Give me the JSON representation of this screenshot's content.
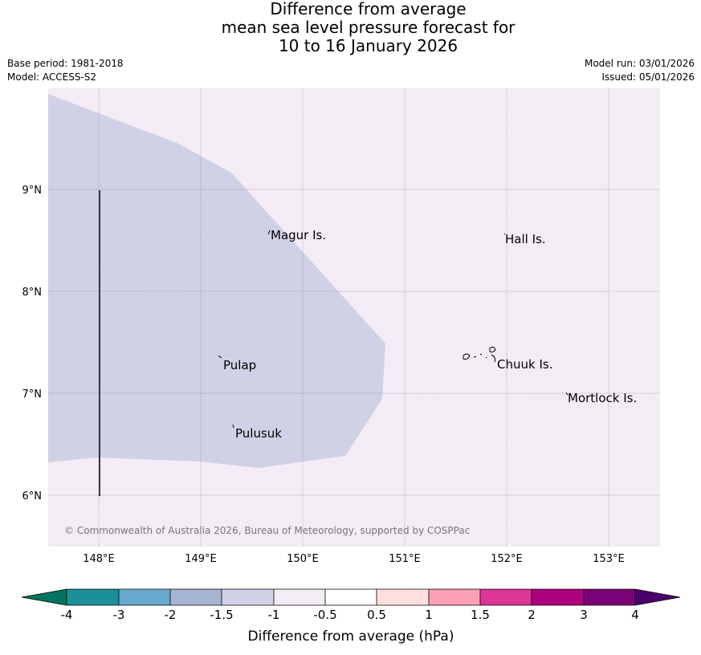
{
  "title": {
    "line1": "Difference from average",
    "line2": "mean sea level pressure forecast for",
    "line3": "10 to 16 January 2026"
  },
  "meta": {
    "base_period": "Base period: 1981-2018",
    "model": "Model: ACCESS-S2",
    "model_run": "Model run: 03/01/2026",
    "issued": "Issued: 05/01/2026"
  },
  "map": {
    "lon_ticks": [
      "148°E",
      "149°E",
      "150°E",
      "151°E",
      "152°E",
      "153°E"
    ],
    "lat_ticks": [
      "9°N",
      "8°N",
      "7°N",
      "6°N"
    ],
    "places": [
      "Magur Is.",
      "Hall Is.",
      "Pulap",
      "Chuuk Is.",
      "Mortlock Is.",
      "Pulusuk"
    ],
    "credit": "© Commonwealth of Australia 2026, Bureau of Meteorology, supported by COSPPac",
    "colors": {
      "background_class": "#f4ecf4",
      "negative_class": "#d0d1e6",
      "grid": "#888888"
    }
  },
  "colorbar": {
    "label": "Difference from average (hPa)",
    "ticks": [
      "-4",
      "-3",
      "-2",
      "-1.5",
      "-1",
      "-0.5",
      "0.5",
      "1",
      "1.5",
      "2",
      "3",
      "4"
    ],
    "colors": [
      "#02735f",
      "#1c9099",
      "#67a9cf",
      "#a6b5d2",
      "#d0d1e6",
      "#f4ecf4",
      "#ffffff",
      "#fde0dd",
      "#fa9fb5",
      "#dd3497",
      "#ae017e",
      "#7a0177",
      "#49006a"
    ]
  }
}
